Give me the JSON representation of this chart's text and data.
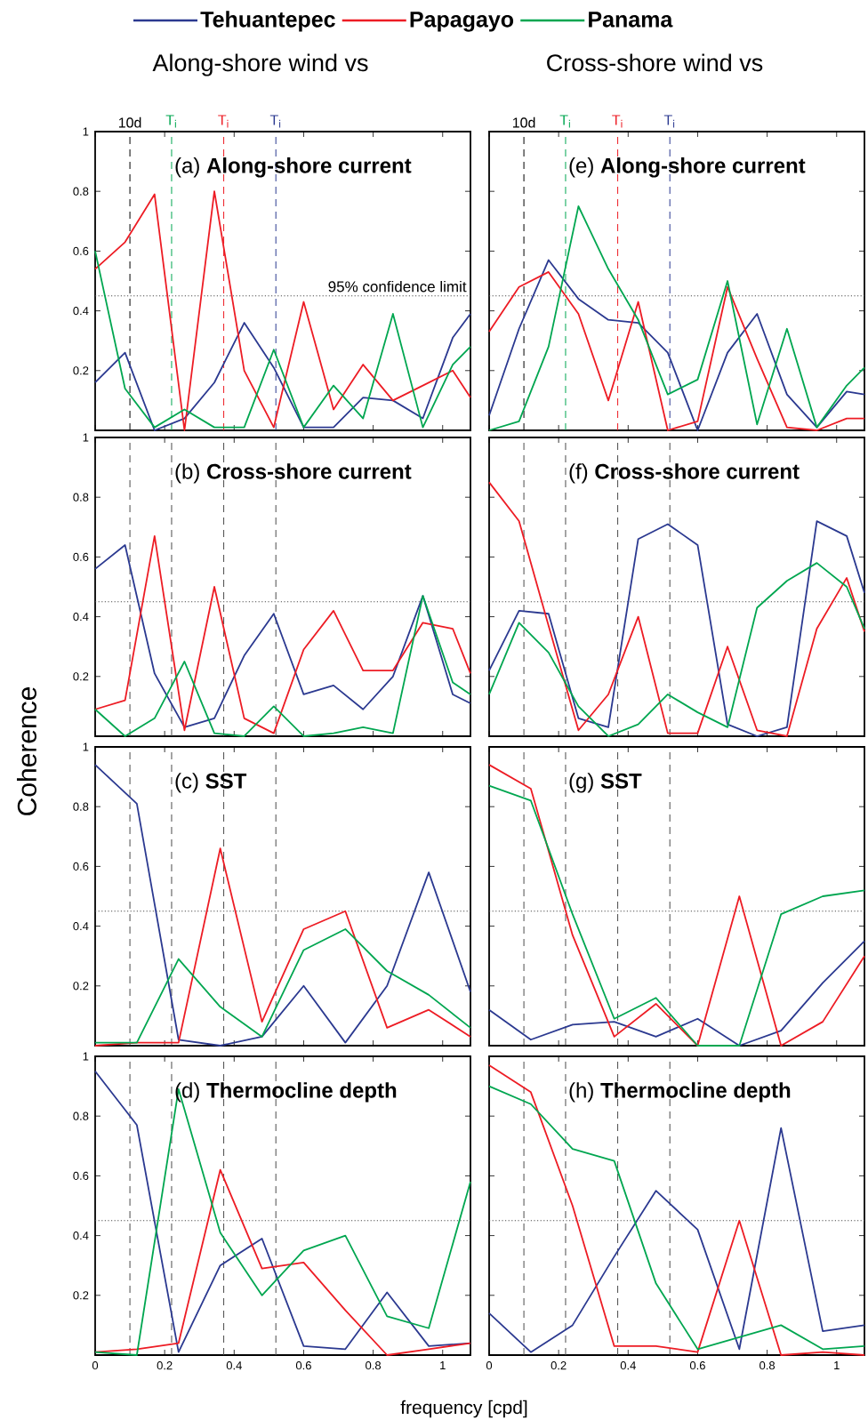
{
  "chart_data": [
    {
      "type": "line",
      "title": "(a) **Along-shore current**",
      "subtitle": "Along-shore wind vs",
      "legend": "top",
      "tick_labels": "y",
      "x": [
        0,
        0.086,
        0.171,
        0.257,
        0.343,
        0.429,
        0.514,
        0.6,
        0.686,
        0.771,
        0.857,
        0.943,
        1.029,
        1.08
      ],
      "xlim": [
        0,
        1.08
      ],
      "ylim": [
        0,
        1
      ],
      "xticks": [
        0,
        0.2,
        0.4,
        0.6,
        0.8,
        1
      ],
      "yticks": [
        0.2,
        0.4,
        0.6,
        0.8,
        1
      ],
      "series": [
        {
          "name": "Tehuantepec",
          "color": "#2b3990",
          "values": [
            0.16,
            0.26,
            0.0,
            0.04,
            0.16,
            0.36,
            0.21,
            0.01,
            0.01,
            0.11,
            0.1,
            0.04,
            0.31,
            0.39
          ]
        },
        {
          "name": "Papagayo",
          "color": "#ed1c24",
          "values": [
            0.54,
            0.63,
            0.79,
            0.0,
            0.8,
            0.2,
            0.01,
            0.43,
            0.07,
            0.22,
            0.1,
            0.15,
            0.2,
            0.11
          ]
        },
        {
          "name": "Panama",
          "color": "#00a650",
          "values": [
            0.6,
            0.14,
            0.01,
            0.07,
            0.01,
            0.01,
            0.27,
            0.01,
            0.15,
            0.04,
            0.39,
            0.01,
            0.22,
            0.28
          ]
        }
      ],
      "ref_lines": [
        {
          "axis": "x",
          "value": 0.1,
          "label": "10d",
          "color": "#000000",
          "line_style": "dashed"
        },
        {
          "axis": "x",
          "value": 0.22,
          "label": "T$_{i}$",
          "color": "#00a650",
          "line_style": "dashed"
        },
        {
          "axis": "x",
          "value": 0.37,
          "label": "T$_{i}$",
          "color": "#ed1c24",
          "line_style": "dashed"
        },
        {
          "axis": "x",
          "value": 0.52,
          "label": "T$_{i}$",
          "color": "#2b3990",
          "line_style": "dashed"
        },
        {
          "axis": "y",
          "value": 0.45,
          "label": "95% confidence limit",
          "line_style": "dotted"
        }
      ]
    },
    {
      "type": "line",
      "title": "(e) **Along-shore current**",
      "subtitle": "Cross-shore wind vs",
      "tick_labels": false,
      "x": [
        0,
        0.086,
        0.171,
        0.257,
        0.343,
        0.429,
        0.514,
        0.6,
        0.686,
        0.771,
        0.857,
        0.943,
        1.029,
        1.08
      ],
      "xlim": [
        0,
        1.08
      ],
      "ylim": [
        0,
        1
      ],
      "xticks": [
        0,
        0.2,
        0.4,
        0.6,
        0.8,
        1
      ],
      "yticks": [
        0.2,
        0.4,
        0.6,
        0.8,
        1
      ],
      "series": [
        {
          "color": "#2b3990",
          "values": [
            0.05,
            0.34,
            0.57,
            0.44,
            0.37,
            0.36,
            0.26,
            0.0,
            0.26,
            0.39,
            0.12,
            0.01,
            0.13,
            0.12
          ]
        },
        {
          "color": "#ed1c24",
          "values": [
            0.33,
            0.48,
            0.53,
            0.39,
            0.1,
            0.43,
            0.0,
            0.03,
            0.48,
            0.24,
            0.01,
            0.0,
            0.04,
            0.04
          ]
        },
        {
          "color": "#00a650",
          "values": [
            0.0,
            0.03,
            0.28,
            0.75,
            0.54,
            0.37,
            0.12,
            0.17,
            0.5,
            0.02,
            0.34,
            0.01,
            0.15,
            0.21
          ]
        }
      ],
      "ref_lines": [
        {
          "axis": "x",
          "value": 0.1,
          "label": "10d",
          "color": "#000000",
          "line_style": "dashed"
        },
        {
          "axis": "x",
          "value": 0.22,
          "label": "T$_{i}$",
          "color": "#00a650",
          "line_style": "dashed"
        },
        {
          "axis": "x",
          "value": 0.37,
          "label": "T$_{i}$",
          "color": "#ed1c24",
          "line_style": "dashed"
        },
        {
          "axis": "x",
          "value": 0.52,
          "label": "T$_{i}$",
          "color": "#2b3990",
          "line_style": "dashed"
        },
        {
          "axis": "y",
          "value": 0.45,
          "line_style": "dotted"
        }
      ]
    },
    {
      "type": "line",
      "title": "(b) **Cross-shore current**",
      "ylabel": "Coherence",
      "tick_labels": "y",
      "x": [
        0,
        0.086,
        0.171,
        0.257,
        0.343,
        0.429,
        0.514,
        0.6,
        0.686,
        0.771,
        0.857,
        0.943,
        1.029,
        1.08
      ],
      "xlim": [
        0,
        1.08
      ],
      "ylim": [
        0,
        1
      ],
      "xticks": [
        0,
        0.2,
        0.4,
        0.6,
        0.8,
        1
      ],
      "yticks": [
        0.2,
        0.4,
        0.6,
        0.8,
        1
      ],
      "series": [
        {
          "color": "#2b3990",
          "values": [
            0.56,
            0.64,
            0.21,
            0.03,
            0.06,
            0.27,
            0.41,
            0.14,
            0.17,
            0.09,
            0.2,
            0.47,
            0.14,
            0.11
          ]
        },
        {
          "color": "#ed1c24",
          "values": [
            0.09,
            0.12,
            0.67,
            0.02,
            0.5,
            0.06,
            0.01,
            0.29,
            0.42,
            0.22,
            0.22,
            0.38,
            0.36,
            0.21
          ]
        },
        {
          "color": "#00a650",
          "values": [
            0.09,
            0.0,
            0.06,
            0.25,
            0.01,
            0.0,
            0.1,
            0.0,
            0.01,
            0.03,
            0.01,
            0.47,
            0.18,
            0.14
          ]
        }
      ],
      "ref_lines": [
        {
          "axis": "x",
          "value": 0.1,
          "line_style": "dashed"
        },
        {
          "axis": "x",
          "value": 0.22,
          "line_style": "dashed"
        },
        {
          "axis": "x",
          "value": 0.37,
          "line_style": "dashed"
        },
        {
          "axis": "x",
          "value": 0.52,
          "line_style": "dashed"
        },
        {
          "axis": "y",
          "value": 0.45,
          "line_style": "dotted"
        }
      ]
    },
    {
      "type": "line",
      "title": "(f) **Cross-shore current**",
      "tick_labels": false,
      "x": [
        0,
        0.086,
        0.171,
        0.257,
        0.343,
        0.429,
        0.514,
        0.6,
        0.686,
        0.771,
        0.857,
        0.943,
        1.029,
        1.08
      ],
      "xlim": [
        0,
        1.08
      ],
      "ylim": [
        0,
        1
      ],
      "xticks": [
        0,
        0.2,
        0.4,
        0.6,
        0.8,
        1
      ],
      "yticks": [
        0.2,
        0.4,
        0.6,
        0.8,
        1
      ],
      "series": [
        {
          "color": "#2b3990",
          "values": [
            0.22,
            0.42,
            0.41,
            0.06,
            0.03,
            0.66,
            0.71,
            0.64,
            0.04,
            0.0,
            0.03,
            0.72,
            0.67,
            0.48
          ]
        },
        {
          "color": "#ed1c24",
          "values": [
            0.85,
            0.72,
            0.37,
            0.02,
            0.14,
            0.4,
            0.01,
            0.01,
            0.3,
            0.02,
            0.0,
            0.36,
            0.53,
            0.35
          ]
        },
        {
          "color": "#00a650",
          "values": [
            0.14,
            0.38,
            0.28,
            0.1,
            0.0,
            0.04,
            0.14,
            0.08,
            0.03,
            0.43,
            0.52,
            0.58,
            0.5,
            0.36
          ]
        }
      ],
      "ref_lines": [
        {
          "axis": "x",
          "value": 0.1,
          "line_style": "dashed"
        },
        {
          "axis": "x",
          "value": 0.22,
          "line_style": "dashed"
        },
        {
          "axis": "x",
          "value": 0.37,
          "line_style": "dashed"
        },
        {
          "axis": "x",
          "value": 0.52,
          "line_style": "dashed"
        },
        {
          "axis": "y",
          "value": 0.45,
          "line_style": "dotted"
        }
      ]
    },
    {
      "type": "line",
      "title": "(c) **SST**",
      "tick_labels": "y",
      "x": [
        0,
        0.12,
        0.24,
        0.36,
        0.48,
        0.6,
        0.72,
        0.84,
        0.96,
        1.08
      ],
      "xlim": [
        0,
        1.08
      ],
      "ylim": [
        0,
        1
      ],
      "xticks": [
        0,
        0.2,
        0.4,
        0.6,
        0.8,
        1
      ],
      "yticks": [
        0.2,
        0.4,
        0.6,
        0.8,
        1
      ],
      "series": [
        {
          "color": "#2b3990",
          "values": [
            0.94,
            0.81,
            0.02,
            0.0,
            0.03,
            0.2,
            0.01,
            0.2,
            0.58,
            0.18
          ]
        },
        {
          "color": "#ed1c24",
          "values": [
            0.0,
            0.01,
            0.01,
            0.66,
            0.08,
            0.39,
            0.45,
            0.06,
            0.12,
            0.03
          ]
        },
        {
          "color": "#00a650",
          "values": [
            0.01,
            0.01,
            0.29,
            0.13,
            0.03,
            0.32,
            0.39,
            0.25,
            0.17,
            0.06
          ]
        }
      ],
      "ref_lines": [
        {
          "axis": "x",
          "value": 0.1,
          "line_style": "dashed"
        },
        {
          "axis": "x",
          "value": 0.22,
          "line_style": "dashed"
        },
        {
          "axis": "x",
          "value": 0.37,
          "line_style": "dashed"
        },
        {
          "axis": "x",
          "value": 0.52,
          "line_style": "dashed"
        },
        {
          "axis": "y",
          "value": 0.45,
          "line_style": "dotted"
        }
      ]
    },
    {
      "type": "line",
      "title": "(g) **SST**",
      "tick_labels": false,
      "x": [
        0,
        0.12,
        0.24,
        0.36,
        0.48,
        0.6,
        0.72,
        0.84,
        0.96,
        1.08
      ],
      "xlim": [
        0,
        1.08
      ],
      "ylim": [
        0,
        1
      ],
      "xticks": [
        0,
        0.2,
        0.4,
        0.6,
        0.8,
        1
      ],
      "yticks": [
        0.2,
        0.4,
        0.6,
        0.8,
        1
      ],
      "series": [
        {
          "color": "#2b3990",
          "values": [
            0.12,
            0.02,
            0.07,
            0.08,
            0.03,
            0.09,
            0.0,
            0.05,
            0.21,
            0.35
          ]
        },
        {
          "color": "#ed1c24",
          "values": [
            0.94,
            0.86,
            0.37,
            0.03,
            0.14,
            0.0,
            0.5,
            0.0,
            0.08,
            0.3
          ]
        },
        {
          "color": "#00a650",
          "values": [
            0.87,
            0.82,
            0.44,
            0.09,
            0.16,
            0.0,
            0.0,
            0.44,
            0.5,
            0.52
          ]
        }
      ],
      "ref_lines": [
        {
          "axis": "x",
          "value": 0.1,
          "line_style": "dashed"
        },
        {
          "axis": "x",
          "value": 0.22,
          "line_style": "dashed"
        },
        {
          "axis": "x",
          "value": 0.37,
          "line_style": "dashed"
        },
        {
          "axis": "x",
          "value": 0.52,
          "line_style": "dashed"
        },
        {
          "axis": "y",
          "value": 0.45,
          "line_style": "dotted"
        }
      ]
    },
    {
      "type": "line",
      "title": "(d) **Thermocline depth**",
      "xlabel": "frequency [cpd]",
      "x": [
        0,
        0.12,
        0.24,
        0.36,
        0.48,
        0.6,
        0.72,
        0.84,
        0.96,
        1.08
      ],
      "xlim": [
        0,
        1.08
      ],
      "ylim": [
        0,
        1
      ],
      "xticks": [
        0,
        0.2,
        0.4,
        0.6,
        0.8,
        1
      ],
      "yticks": [
        0.2,
        0.4,
        0.6,
        0.8,
        1
      ],
      "series": [
        {
          "color": "#2b3990",
          "values": [
            0.95,
            0.77,
            0.01,
            0.3,
            0.39,
            0.03,
            0.02,
            0.21,
            0.03,
            0.04
          ]
        },
        {
          "color": "#ed1c24",
          "values": [
            0.01,
            0.02,
            0.04,
            0.62,
            0.29,
            0.31,
            0.15,
            0.0,
            0.02,
            0.04
          ]
        },
        {
          "color": "#00a650",
          "values": [
            0.01,
            0.0,
            0.89,
            0.41,
            0.2,
            0.35,
            0.4,
            0.13,
            0.09,
            0.58
          ]
        }
      ],
      "ref_lines": [
        {
          "axis": "x",
          "value": 0.1,
          "line_style": "dashed"
        },
        {
          "axis": "x",
          "value": 0.22,
          "line_style": "dashed"
        },
        {
          "axis": "x",
          "value": 0.37,
          "line_style": "dashed"
        },
        {
          "axis": "x",
          "value": 0.52,
          "line_style": "dashed"
        },
        {
          "axis": "y",
          "value": 0.45,
          "line_style": "dotted"
        }
      ]
    },
    {
      "type": "line",
      "title": "(h) **Thermocline depth**",
      "tick_labels": "x",
      "x": [
        0,
        0.12,
        0.24,
        0.36,
        0.48,
        0.6,
        0.72,
        0.84,
        0.96,
        1.08
      ],
      "xlim": [
        0,
        1.08
      ],
      "ylim": [
        0,
        1
      ],
      "xticks": [
        0,
        0.2,
        0.4,
        0.6,
        0.8,
        1
      ],
      "yticks": [
        0.2,
        0.4,
        0.6,
        0.8,
        1
      ],
      "series": [
        {
          "color": "#2b3990",
          "values": [
            0.14,
            0.01,
            0.1,
            0.33,
            0.55,
            0.42,
            0.02,
            0.76,
            0.08,
            0.1
          ]
        },
        {
          "color": "#ed1c24",
          "values": [
            0.97,
            0.88,
            0.5,
            0.03,
            0.03,
            0.01,
            0.45,
            0.0,
            0.01,
            0.0
          ]
        },
        {
          "color": "#00a650",
          "values": [
            0.9,
            0.84,
            0.69,
            0.65,
            0.24,
            0.02,
            0.06,
            0.1,
            0.02,
            0.03
          ]
        }
      ],
      "ref_lines": [
        {
          "axis": "x",
          "value": 0.1,
          "line_style": "dashed"
        },
        {
          "axis": "x",
          "value": 0.22,
          "line_style": "dashed"
        },
        {
          "axis": "x",
          "value": 0.37,
          "line_style": "dashed"
        },
        {
          "axis": "x",
          "value": 0.52,
          "line_style": "dashed"
        },
        {
          "axis": "y",
          "value": 0.45,
          "line_style": "dotted"
        }
      ]
    }
  ]
}
